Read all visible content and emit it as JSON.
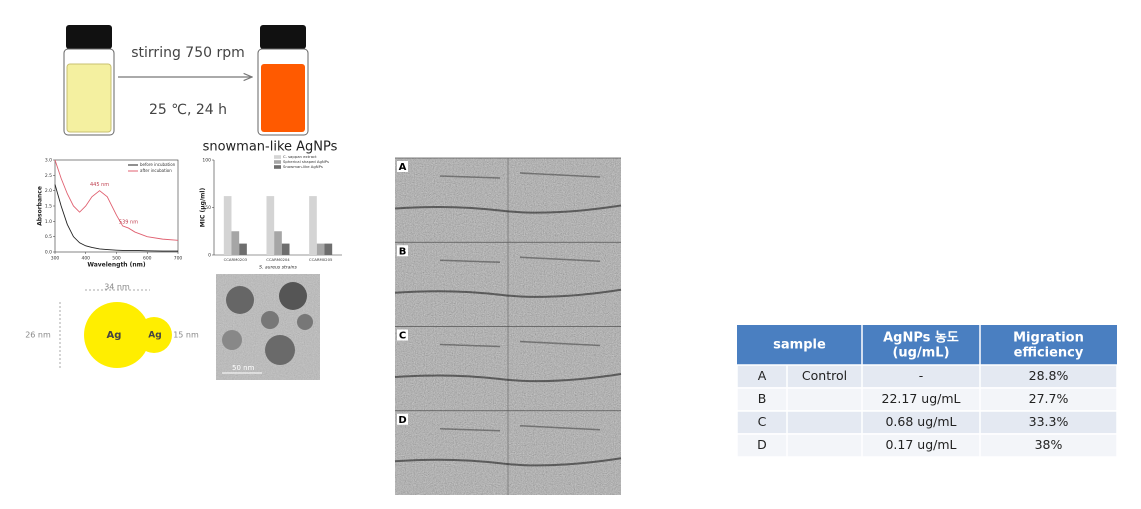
{
  "scheme": {
    "step": "stirring 750 rpm",
    "conditions": "25 ℃, 24 h"
  },
  "chart_data": [
    {
      "type": "line",
      "x_label": "Wavelength (nm)",
      "y_label": "Absorbance",
      "x": [
        300,
        320,
        340,
        360,
        380,
        400,
        420,
        445,
        470,
        500,
        520,
        539,
        560,
        600,
        650,
        700
      ],
      "series": [
        {
          "name": "before incubation",
          "color": "#222222",
          "values": [
            2.2,
            1.5,
            0.9,
            0.5,
            0.3,
            0.2,
            0.15,
            0.1,
            0.08,
            0.06,
            0.05,
            0.05,
            0.05,
            0.04,
            0.03,
            0.03
          ]
        },
        {
          "name": "after incubation",
          "color": "#e06070",
          "values": [
            3.0,
            2.4,
            1.9,
            1.5,
            1.3,
            1.5,
            1.8,
            2.0,
            1.8,
            1.2,
            0.85,
            0.78,
            0.65,
            0.5,
            0.42,
            0.38
          ]
        }
      ],
      "annotations": [
        {
          "text": "445 nm",
          "x": 445,
          "y": 2.0
        },
        {
          "text": "539 nm",
          "x": 539,
          "y": 0.78
        }
      ],
      "xlim": [
        300,
        700
      ],
      "xticks": [
        300,
        400,
        500,
        600,
        700
      ],
      "ylim": [
        0,
        3
      ],
      "yticks": [
        {
          "value": 0,
          "label": "0.0"
        },
        0.5,
        {
          "value": 1,
          "label": "1.0"
        },
        1.5,
        {
          "value": 2,
          "label": "2.0"
        },
        2.5,
        {
          "value": 3,
          "label": "3.0"
        }
      ]
    },
    {
      "type": "bar",
      "title": "snowman-like AgNPs",
      "x_label": "S. aureus strains",
      "y_label": "MIC (μg/ml)",
      "categories": [
        "CCARM0203",
        "CCARM0204",
        "CCARM0205"
      ],
      "series": [
        {
          "name": "C. sappan extract",
          "color": "#d4d4d4",
          "values": [
            62,
            62,
            62
          ]
        },
        {
          "name": "Spherical shaped AgNPs",
          "color": "#a6a6a6",
          "values": [
            25,
            25,
            12
          ]
        },
        {
          "name": "Snowman-like AgNPs",
          "color": "#6e6e6e",
          "values": [
            12,
            12,
            12
          ]
        }
      ],
      "ylim": [
        0,
        100
      ],
      "yticks": [
        0,
        50,
        100
      ]
    }
  ],
  "particle": {
    "width": "34 nm",
    "big_height": "26 nm",
    "small_height": "15 nm",
    "big_label": "Ag",
    "small_label": "Ag"
  },
  "tem": {
    "scale": "50 nm"
  },
  "microscopy": {
    "panels": [
      "A",
      "B",
      "C",
      "D"
    ]
  },
  "table": {
    "header": {
      "sample": "sample",
      "conc": [
        "AgNPs 농도",
        "(ug/mL)"
      ],
      "eff": [
        "Migration",
        "efficiency"
      ]
    },
    "rows": [
      {
        "sample": "A",
        "note": "Control",
        "conc": "-",
        "eff": "28.8%"
      },
      {
        "sample": "B",
        "conc": "22.17 ug/mL",
        "eff": "27.7%"
      },
      {
        "sample": "C",
        "conc": "0.68 ug/mL",
        "eff": "33.3%"
      },
      {
        "sample": "D",
        "conc": "0.17 ug/mL",
        "eff": "38%"
      }
    ]
  }
}
